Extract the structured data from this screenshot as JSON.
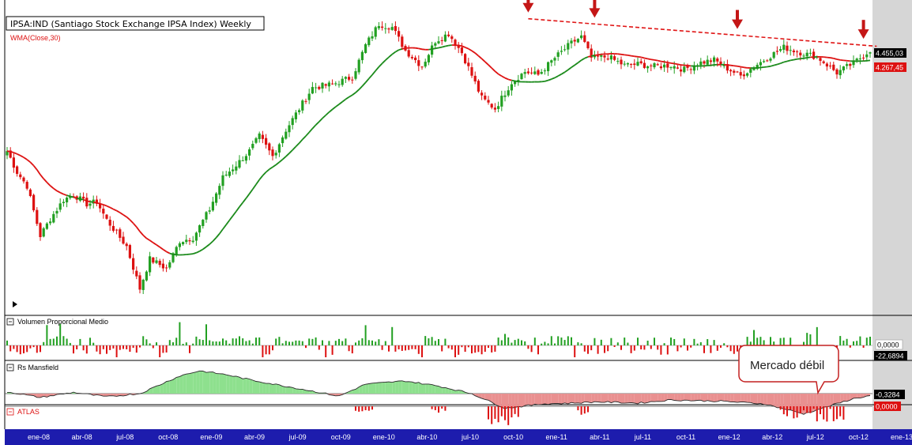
{
  "chart_data": [
    {
      "panel": "price",
      "type": "candlestick",
      "title": "IPSA:IND (Santiago Stock Exchange IPSA Index) Weekly",
      "legend": "WMA(Close,30)",
      "ylim": [
        2000,
        4800
      ],
      "x_ticks": [
        "ene-08",
        "abr-08",
        "jul-08",
        "oct-08",
        "ene-09",
        "abr-09",
        "jul-09",
        "oct-09",
        "ene-10",
        "abr-10",
        "jul-10",
        "oct-10",
        "ene-11",
        "abr-11",
        "jul-11",
        "oct-11",
        "ene-12",
        "abr-12",
        "jul-12",
        "oct-12",
        "ene-13"
      ],
      "anchors": {
        "weeks": [
          0,
          3,
          6,
          10,
          13,
          17,
          20,
          24,
          27,
          30,
          36,
          40,
          43,
          48,
          52,
          56,
          61,
          65,
          70,
          73,
          76,
          80,
          84,
          88,
          92,
          98,
          104,
          108,
          112,
          116,
          120,
          125,
          129,
          133,
          137,
          143,
          147,
          152,
          156,
          160,
          165,
          170,
          173,
          176,
          181,
          186,
          190,
          195,
          200,
          204,
          208,
          213,
          217,
          221,
          225,
          230,
          234,
          238,
          244,
          250,
          255,
          260
        ],
        "close": [
          3500,
          3300,
          3170,
          2700,
          2860,
          3040,
          3090,
          3000,
          3020,
          2850,
          2600,
          2200,
          2480,
          2390,
          2650,
          2680,
          2950,
          3250,
          3400,
          3500,
          3640,
          3450,
          3700,
          3900,
          4100,
          4130,
          4200,
          4500,
          4700,
          4670,
          4450,
          4300,
          4540,
          4610,
          4430,
          4000,
          3900,
          4150,
          4250,
          4220,
          4380,
          4520,
          4580,
          4380,
          4390,
          4310,
          4320,
          4300,
          4310,
          4270,
          4330,
          4360,
          4280,
          4210,
          4300,
          4400,
          4480,
          4440,
          4390,
          4240,
          4330,
          4455
        ]
      },
      "price_labels": [
        "4.455,03",
        "4.267,45"
      ],
      "wma_period": 30,
      "trendline": "descending resistance, dashed red",
      "markers": "4 down arrows at peaks"
    },
    {
      "panel": "volume",
      "type": "bar",
      "title": "Volumen Proporcional Medio",
      "value_labels": [
        "0,0000",
        "-22,6894"
      ]
    },
    {
      "panel": "rs",
      "type": "area",
      "title": "Rs Mansfield",
      "value_labels": [
        "-0,3284"
      ],
      "anchors": {
        "weeks": [
          0,
          10,
          20,
          30,
          40,
          52,
          58,
          66,
          75,
          90,
          100,
          108,
          120,
          130,
          140,
          150,
          162,
          170,
          178,
          190,
          200,
          215,
          228,
          240,
          250,
          255,
          260
        ],
        "values": [
          0.3,
          -0.6,
          0.2,
          -0.5,
          0.0,
          2.8,
          3.6,
          3.0,
          2.0,
          0.6,
          -0.4,
          1.5,
          2.0,
          1.2,
          0.0,
          -2.3,
          -1.6,
          -1.5,
          -1.3,
          -1.5,
          -1.0,
          -1.2,
          -1.6,
          -3.2,
          -1.6,
          -0.8,
          -0.33
        ]
      }
    },
    {
      "panel": "atlas",
      "type": "bar",
      "title": "ATLAS",
      "value_labels": [
        "0,0000"
      ]
    }
  ],
  "annotations": {
    "callout": "Mercado débil"
  },
  "colors": {
    "up": "#22a022",
    "down": "#dd1111",
    "wma_down": "#dd1111",
    "wma_up": "#1a8a1a",
    "axis_bar": "#1d1cad",
    "right_margin": "#d6d6d6",
    "rs_positive": "#8ee08e",
    "rs_negative": "#e99090"
  }
}
